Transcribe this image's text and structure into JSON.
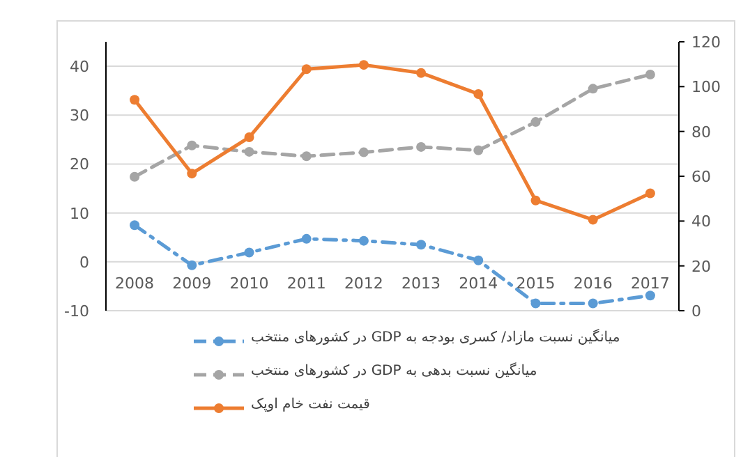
{
  "chart_data": {
    "type": "line",
    "categories": [
      "2008",
      "2009",
      "2010",
      "2011",
      "2012",
      "2013",
      "2014",
      "2015",
      "2016",
      "2017"
    ],
    "series": [
      {
        "name": "میانگین نسبت مازاد/ کسری بودجه به GDP در کشورهای منتخب",
        "color": "#5b9bd5",
        "line_style": "dashdot",
        "values": [
          7.5,
          -0.7,
          1.9,
          4.7,
          4.3,
          3.5,
          0.3,
          -8.5,
          -8.5,
          -6.9
        ]
      },
      {
        "name": "میانگین نسبت بدهی به GDP در کشورهای منتخب",
        "color": "#a5a5a5",
        "line_style": "dashed",
        "values": [
          17.4,
          23.8,
          22.5,
          21.6,
          22.4,
          23.5,
          22.8,
          28.6,
          35.4,
          38.3
        ]
      },
      {
        "name": "قیمت نفت خام اوپک",
        "color": "#ed7d31",
        "line_style": "solid",
        "axis": "y2",
        "values": [
          94.1,
          61.2,
          77.4,
          107.8,
          109.7,
          106.1,
          96.7,
          49.2,
          40.6,
          52.4
        ]
      }
    ],
    "ylim": [
      -10,
      45
    ],
    "yticks": [
      -10,
      0,
      10,
      20,
      30,
      40
    ],
    "y2lim": [
      0,
      120
    ],
    "y2ticks": [
      0,
      20,
      40,
      60,
      80,
      100,
      120
    ],
    "grid": "y",
    "legend": "bottom",
    "marker": "circle"
  }
}
